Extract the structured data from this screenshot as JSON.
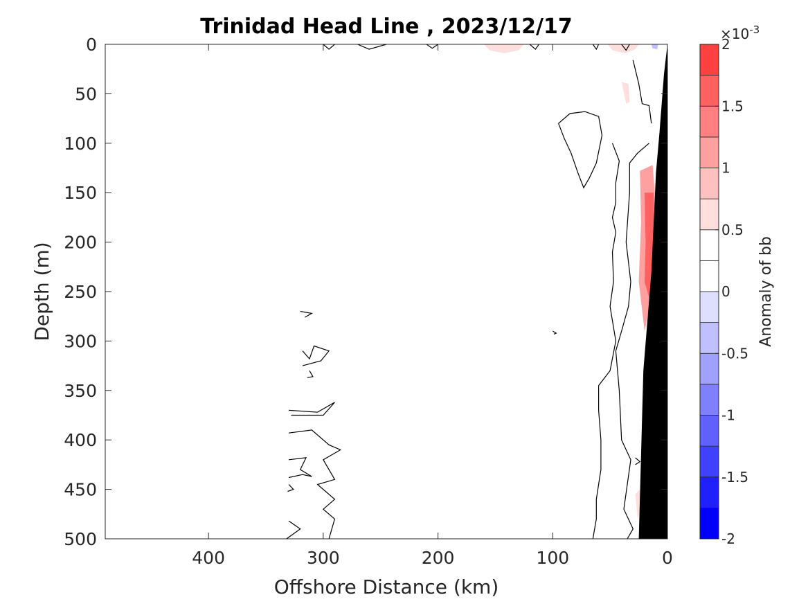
{
  "chart_data": {
    "type": "heatmap",
    "title": "Trinidad Head Line , 2023/12/17",
    "xlabel": "Offshore Distance (km)",
    "ylabel": "Depth (m)",
    "xlim": [
      490,
      0
    ],
    "ylim": [
      0,
      500
    ],
    "x_reversed": true,
    "y_reversed": true,
    "x_ticks": [
      400,
      300,
      200,
      100,
      0
    ],
    "x_tick_labels": [
      "400",
      "300",
      "200",
      "100",
      "0"
    ],
    "y_ticks": [
      0,
      50,
      100,
      150,
      200,
      250,
      300,
      350,
      400,
      450,
      500
    ],
    "y_tick_labels": [
      "0",
      "50",
      "100",
      "150",
      "200",
      "250",
      "300",
      "350",
      "400",
      "450",
      "500"
    ],
    "grid": false,
    "colorbar": {
      "label": "Anomaly of bb",
      "exponent_label": "×10",
      "exponent_power": "-3",
      "range": [
        -2,
        2
      ],
      "ticks": [
        -2,
        -1.5,
        -1,
        -0.5,
        0,
        0.5,
        1,
        1.5,
        2
      ],
      "tick_labels": [
        "-2",
        "-1.5",
        "-1",
        "-0.5",
        "0",
        "0.5",
        "1",
        "1.5",
        "2"
      ],
      "levels": [
        -2,
        -1.75,
        -1.5,
        -1.25,
        -1,
        -0.75,
        -0.5,
        -0.25,
        0,
        0.25,
        0.5,
        0.75,
        1,
        1.25,
        1.5,
        1.75,
        2
      ],
      "colors": [
        "#0000ff",
        "#2020ff",
        "#4040ff",
        "#6060ff",
        "#8080ff",
        "#a0a0ff",
        "#c0c0ff",
        "#dedefe",
        "#ffffff",
        "#ffffff",
        "#ffdede",
        "#ffc0c0",
        "#ffa0a0",
        "#ff8080",
        "#ff6060",
        "#ff4040",
        "#ff0000"
      ]
    },
    "bathymetry_color": "#000000",
    "bathymetry": [
      [
        0,
        0
      ],
      [
        0,
        500
      ],
      [
        25,
        500
      ],
      [
        21,
        330
      ],
      [
        14,
        230
      ],
      [
        10,
        130
      ],
      [
        7,
        90
      ],
      [
        3,
        30
      ]
    ],
    "anomaly_patches": [
      {
        "value": 0.4,
        "points": [
          [
            332,
            0
          ],
          [
            332,
            8
          ],
          [
            323,
            10
          ],
          [
            315,
            8
          ],
          [
            310,
            0
          ]
        ]
      },
      {
        "value": 0.5,
        "points": [
          [
            160,
            0
          ],
          [
            155,
            6
          ],
          [
            142,
            9
          ],
          [
            130,
            6
          ],
          [
            125,
            0
          ]
        ]
      },
      {
        "value": 0.4,
        "points": [
          [
            95,
            0
          ],
          [
            90,
            5
          ],
          [
            84,
            4
          ],
          [
            80,
            0
          ]
        ]
      },
      {
        "value": 0.6,
        "points": [
          [
            52,
            0
          ],
          [
            48,
            6
          ],
          [
            37,
            9
          ],
          [
            28,
            5
          ],
          [
            25,
            0
          ]
        ]
      },
      {
        "value": 0.4,
        "points": [
          [
            30,
            10
          ],
          [
            24,
            30
          ],
          [
            22,
            40
          ],
          [
            18,
            30
          ],
          [
            15,
            10
          ]
        ]
      },
      {
        "value": 0.5,
        "points": [
          [
            40,
            38
          ],
          [
            36,
            60
          ],
          [
            33,
            58
          ],
          [
            34,
            40
          ]
        ]
      },
      {
        "value": -0.4,
        "points": [
          [
            14,
            0
          ],
          [
            13,
            4
          ],
          [
            9,
            5
          ],
          [
            8,
            0
          ]
        ]
      },
      {
        "value": 0.4,
        "points": [
          [
            28,
            120
          ],
          [
            27,
            170
          ],
          [
            30,
            240
          ],
          [
            24,
            330
          ],
          [
            13,
            270
          ],
          [
            11,
            150
          ],
          [
            14,
            115
          ]
        ]
      },
      {
        "value": 1.0,
        "points": [
          [
            24,
            128
          ],
          [
            23,
            180
          ],
          [
            25,
            240
          ],
          [
            20,
            290
          ],
          [
            13,
            250
          ],
          [
            11,
            150
          ],
          [
            13,
            122
          ]
        ]
      },
      {
        "value": 1.5,
        "points": [
          [
            20,
            150
          ],
          [
            19,
            200
          ],
          [
            20,
            240
          ],
          [
            15,
            260
          ],
          [
            12,
            200
          ],
          [
            12,
            150
          ]
        ]
      },
      {
        "value": 0.5,
        "points": [
          [
            28,
            455
          ],
          [
            26,
            480
          ],
          [
            23,
            470
          ],
          [
            24,
            450
          ]
        ]
      }
    ],
    "contours": [
      [
        [
          120,
          0
        ],
        [
          115,
          5
        ],
        [
          112,
          0
        ]
      ],
      [
        [
          200,
          0
        ],
        [
          205,
          4
        ],
        [
          210,
          0
        ]
      ],
      [
        [
          300,
          0
        ],
        [
          295,
          5
        ],
        [
          290,
          0
        ]
      ],
      [
        [
          270,
          0
        ],
        [
          260,
          5
        ],
        [
          245,
          0
        ]
      ],
      [
        [
          65,
          0
        ],
        [
          62,
          5
        ],
        [
          60,
          0
        ]
      ],
      [
        [
          40,
          0
        ],
        [
          36,
          6
        ],
        [
          33,
          0
        ]
      ],
      [
        [
          30,
          16
        ],
        [
          25,
          40
        ],
        [
          22,
          60
        ],
        [
          16,
          62
        ],
        [
          14,
          80
        ]
      ],
      [
        [
          95,
          80
        ],
        [
          85,
          70
        ],
        [
          72,
          68
        ],
        [
          60,
          73
        ],
        [
          57,
          92
        ],
        [
          62,
          120
        ],
        [
          68,
          135
        ],
        [
          73,
          145
        ],
        [
          78,
          130
        ],
        [
          84,
          110
        ],
        [
          90,
          95
        ],
        [
          95,
          80
        ]
      ],
      [
        [
          48,
          100
        ],
        [
          42,
          118
        ],
        [
          45,
          140
        ],
        [
          45,
          160
        ],
        [
          48,
          175
        ],
        [
          45,
          190
        ],
        [
          48,
          210
        ],
        [
          47,
          240
        ],
        [
          50,
          265
        ],
        [
          45,
          300
        ],
        [
          50,
          330
        ],
        [
          60,
          345
        ],
        [
          60,
          370
        ],
        [
          58,
          400
        ],
        [
          58,
          430
        ],
        [
          62,
          460
        ],
        [
          62,
          480
        ],
        [
          65,
          500
        ]
      ],
      [
        [
          16,
          100
        ],
        [
          26,
          110
        ],
        [
          33,
          120
        ],
        [
          33,
          150
        ],
        [
          36,
          200
        ],
        [
          32,
          240
        ],
        [
          34,
          265
        ],
        [
          40,
          290
        ],
        [
          45,
          310
        ],
        [
          42,
          350
        ],
        [
          40,
          400
        ],
        [
          32,
          420
        ],
        [
          38,
          470
        ],
        [
          30,
          490
        ],
        [
          35,
          500
        ]
      ],
      [
        [
          320,
          270
        ],
        [
          310,
          272
        ],
        [
          316,
          276
        ]
      ],
      [
        [
          318,
          310
        ],
        [
          312,
          318
        ],
        [
          308,
          305
        ],
        [
          295,
          310
        ],
        [
          302,
          320
        ],
        [
          318,
          325
        ]
      ],
      [
        [
          312,
          330
        ],
        [
          309,
          336
        ],
        [
          314,
          337
        ]
      ],
      [
        [
          330,
          370
        ],
        [
          305,
          372
        ],
        [
          290,
          362
        ],
        [
          300,
          375
        ],
        [
          328,
          375
        ]
      ],
      [
        [
          330,
          393
        ],
        [
          310,
          390
        ],
        [
          295,
          405
        ],
        [
          285,
          410
        ],
        [
          300,
          420
        ],
        [
          290,
          440
        ],
        [
          305,
          445
        ],
        [
          290,
          460
        ],
        [
          300,
          470
        ],
        [
          290,
          480
        ],
        [
          295,
          500
        ]
      ],
      [
        [
          330,
          420
        ],
        [
          315,
          418
        ],
        [
          320,
          430
        ],
        [
          310,
          437
        ],
        [
          318,
          435
        ],
        [
          330,
          438
        ]
      ],
      [
        [
          330,
          445
        ],
        [
          326,
          450
        ],
        [
          331,
          452
        ]
      ],
      [
        [
          330,
          482
        ],
        [
          320,
          490
        ],
        [
          332,
          500
        ]
      ],
      [
        [
          100,
          290
        ],
        [
          97,
          292
        ],
        [
          99,
          293
        ]
      ],
      [
        [
          28,
          418
        ],
        [
          24,
          422
        ],
        [
          28,
          425
        ]
      ]
    ]
  }
}
